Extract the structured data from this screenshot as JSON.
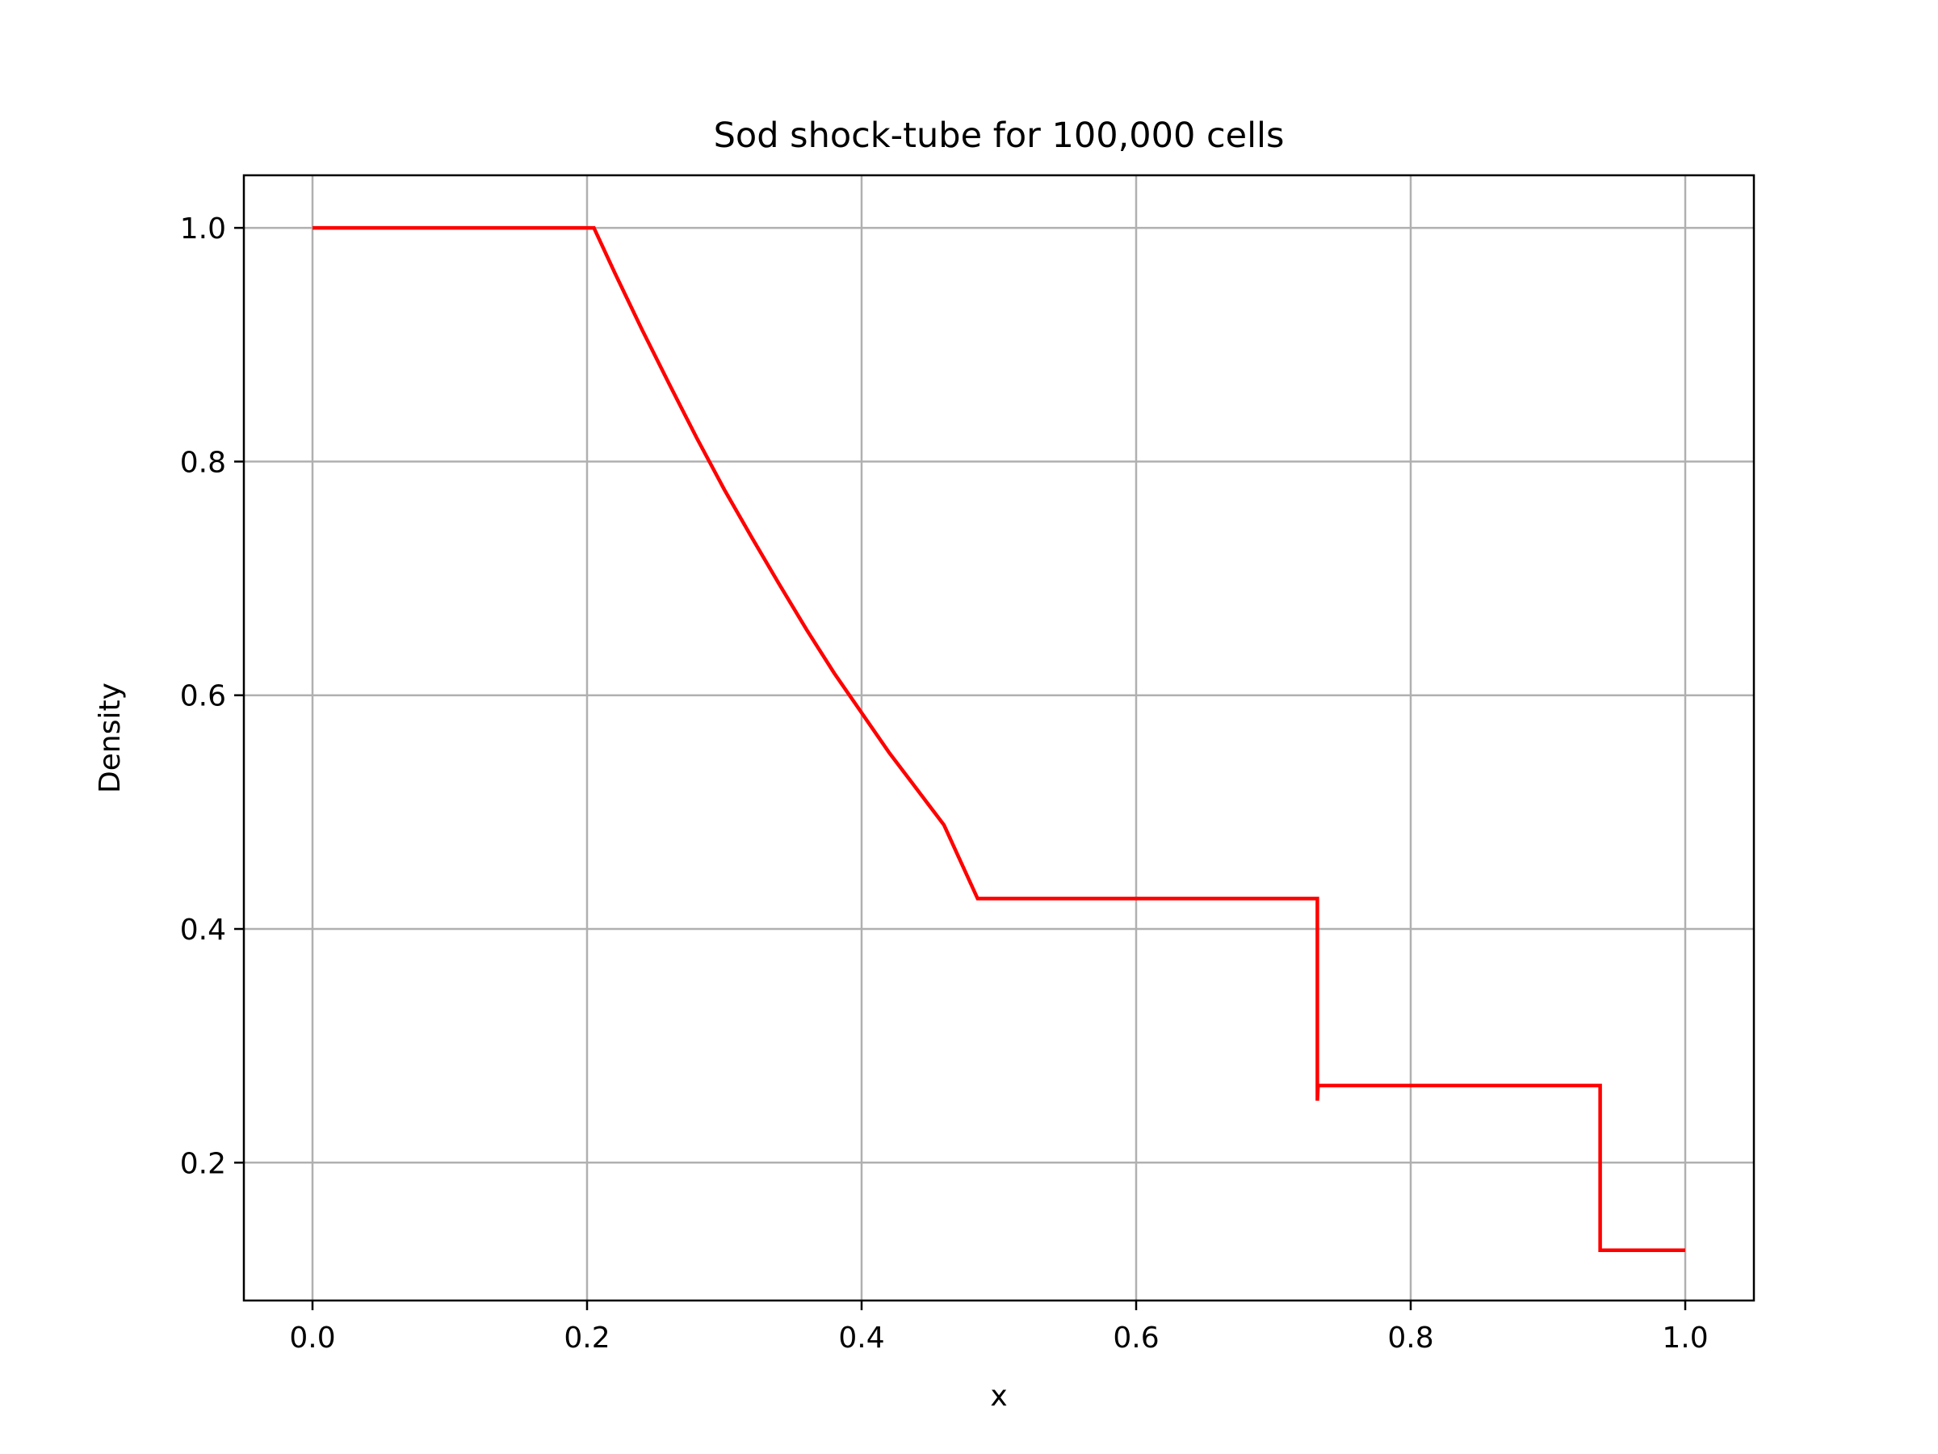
{
  "chart_data": {
    "type": "line",
    "title": "Sod shock-tube for 100,000 cells",
    "xlabel": "x",
    "ylabel": "Density",
    "xlim": [
      -0.05,
      1.05
    ],
    "ylim": [
      0.082,
      1.045
    ],
    "xticks": [
      0.0,
      0.2,
      0.4,
      0.6,
      0.8,
      1.0
    ],
    "xtick_labels": [
      "0.0",
      "0.2",
      "0.4",
      "0.6",
      "0.8",
      "1.0"
    ],
    "yticks": [
      0.2,
      0.4,
      0.6,
      0.8,
      1.0
    ],
    "ytick_labels": [
      "0.2",
      "0.4",
      "0.6",
      "0.8",
      "1.0"
    ],
    "grid": true,
    "legend": "none",
    "series": [
      {
        "color": "#ff0000",
        "x": [
          0.0,
          0.205,
          0.22,
          0.24,
          0.26,
          0.28,
          0.3,
          0.32,
          0.34,
          0.36,
          0.38,
          0.4,
          0.42,
          0.44,
          0.46,
          0.4845,
          0.485,
          0.6,
          0.732,
          0.732,
          0.7325,
          0.7325,
          0.85,
          0.938,
          0.938,
          1.0
        ],
        "y": [
          1.0,
          1.0,
          0.962,
          0.913,
          0.866,
          0.82,
          0.776,
          0.735,
          0.695,
          0.656,
          0.619,
          0.585,
          0.551,
          0.52,
          0.489,
          0.426,
          0.426,
          0.426,
          0.426,
          0.253,
          0.266,
          0.266,
          0.266,
          0.266,
          0.125,
          0.125
        ]
      }
    ]
  }
}
